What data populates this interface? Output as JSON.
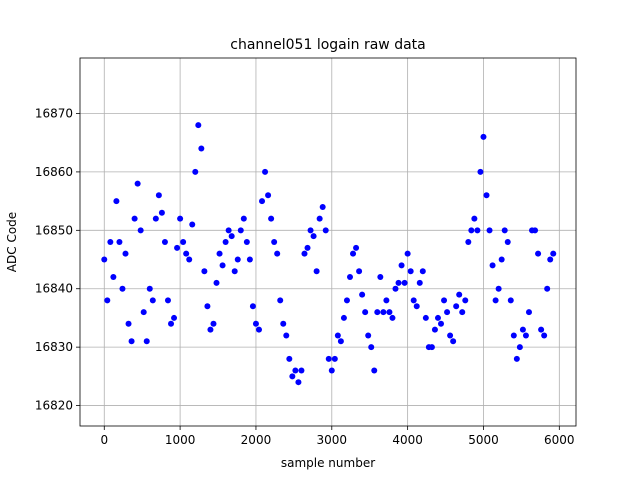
{
  "chart_data": {
    "type": "scatter",
    "title": "channel051 logain raw data",
    "xlabel": "sample number",
    "ylabel": "ADC Code",
    "xlim": [
      -320,
      6220
    ],
    "ylim": [
      16816.5,
      16879.5
    ],
    "xticks": [
      0,
      1000,
      2000,
      3000,
      4000,
      5000,
      6000
    ],
    "yticks": [
      16820,
      16830,
      16840,
      16850,
      16860,
      16870
    ],
    "grid": true,
    "marker_color": "#0000ff",
    "series": [
      {
        "points": [
          [
            0,
            16845
          ],
          [
            40,
            16838
          ],
          [
            80,
            16848
          ],
          [
            120,
            16842
          ],
          [
            160,
            16855
          ],
          [
            200,
            16848
          ],
          [
            240,
            16840
          ],
          [
            280,
            16846
          ],
          [
            320,
            16834
          ],
          [
            360,
            16831
          ],
          [
            400,
            16852
          ],
          [
            440,
            16858
          ],
          [
            480,
            16850
          ],
          [
            520,
            16836
          ],
          [
            560,
            16831
          ],
          [
            600,
            16840
          ],
          [
            640,
            16838
          ],
          [
            680,
            16852
          ],
          [
            720,
            16856
          ],
          [
            760,
            16853
          ],
          [
            800,
            16848
          ],
          [
            840,
            16838
          ],
          [
            880,
            16834
          ],
          [
            920,
            16835
          ],
          [
            960,
            16847
          ],
          [
            1000,
            16852
          ],
          [
            1040,
            16848
          ],
          [
            1080,
            16846
          ],
          [
            1120,
            16845
          ],
          [
            1160,
            16851
          ],
          [
            1200,
            16860
          ],
          [
            1240,
            16868
          ],
          [
            1280,
            16864
          ],
          [
            1320,
            16843
          ],
          [
            1360,
            16837
          ],
          [
            1400,
            16833
          ],
          [
            1440,
            16834
          ],
          [
            1480,
            16841
          ],
          [
            1520,
            16846
          ],
          [
            1560,
            16844
          ],
          [
            1600,
            16848
          ],
          [
            1640,
            16850
          ],
          [
            1680,
            16849
          ],
          [
            1720,
            16843
          ],
          [
            1760,
            16845
          ],
          [
            1800,
            16850
          ],
          [
            1840,
            16852
          ],
          [
            1880,
            16848
          ],
          [
            1920,
            16845
          ],
          [
            1960,
            16837
          ],
          [
            2000,
            16834
          ],
          [
            2040,
            16833
          ],
          [
            2080,
            16855
          ],
          [
            2120,
            16860
          ],
          [
            2160,
            16856
          ],
          [
            2200,
            16852
          ],
          [
            2240,
            16848
          ],
          [
            2280,
            16846
          ],
          [
            2320,
            16838
          ],
          [
            2360,
            16834
          ],
          [
            2400,
            16832
          ],
          [
            2440,
            16828
          ],
          [
            2480,
            16825
          ],
          [
            2520,
            16826
          ],
          [
            2560,
            16824
          ],
          [
            2600,
            16826
          ],
          [
            2640,
            16846
          ],
          [
            2680,
            16847
          ],
          [
            2720,
            16850
          ],
          [
            2760,
            16849
          ],
          [
            2800,
            16843
          ],
          [
            2840,
            16852
          ],
          [
            2880,
            16854
          ],
          [
            2920,
            16850
          ],
          [
            2960,
            16828
          ],
          [
            3000,
            16826
          ],
          [
            3040,
            16828
          ],
          [
            3080,
            16832
          ],
          [
            3120,
            16831
          ],
          [
            3160,
            16835
          ],
          [
            3200,
            16838
          ],
          [
            3240,
            16842
          ],
          [
            3280,
            16846
          ],
          [
            3320,
            16847
          ],
          [
            3360,
            16843
          ],
          [
            3400,
            16839
          ],
          [
            3440,
            16836
          ],
          [
            3480,
            16832
          ],
          [
            3520,
            16830
          ],
          [
            3560,
            16826
          ],
          [
            3600,
            16836
          ],
          [
            3640,
            16842
          ],
          [
            3680,
            16836
          ],
          [
            3720,
            16838
          ],
          [
            3760,
            16836
          ],
          [
            3800,
            16835
          ],
          [
            3840,
            16840
          ],
          [
            3880,
            16841
          ],
          [
            3920,
            16844
          ],
          [
            3960,
            16841
          ],
          [
            4000,
            16846
          ],
          [
            4040,
            16843
          ],
          [
            4080,
            16838
          ],
          [
            4120,
            16837
          ],
          [
            4160,
            16841
          ],
          [
            4200,
            16843
          ],
          [
            4240,
            16835
          ],
          [
            4280,
            16830
          ],
          [
            4320,
            16830
          ],
          [
            4360,
            16833
          ],
          [
            4400,
            16835
          ],
          [
            4440,
            16834
          ],
          [
            4480,
            16838
          ],
          [
            4520,
            16836
          ],
          [
            4560,
            16832
          ],
          [
            4600,
            16831
          ],
          [
            4640,
            16837
          ],
          [
            4680,
            16839
          ],
          [
            4720,
            16836
          ],
          [
            4760,
            16838
          ],
          [
            4800,
            16848
          ],
          [
            4840,
            16850
          ],
          [
            4880,
            16852
          ],
          [
            4920,
            16850
          ],
          [
            4960,
            16860
          ],
          [
            5000,
            16866
          ],
          [
            5040,
            16856
          ],
          [
            5080,
            16850
          ],
          [
            5120,
            16844
          ],
          [
            5160,
            16838
          ],
          [
            5200,
            16840
          ],
          [
            5240,
            16845
          ],
          [
            5280,
            16850
          ],
          [
            5320,
            16848
          ],
          [
            5360,
            16838
          ],
          [
            5400,
            16832
          ],
          [
            5440,
            16828
          ],
          [
            5480,
            16830
          ],
          [
            5520,
            16833
          ],
          [
            5560,
            16832
          ],
          [
            5600,
            16836
          ],
          [
            5640,
            16850
          ],
          [
            5680,
            16850
          ],
          [
            5720,
            16846
          ],
          [
            5760,
            16833
          ],
          [
            5800,
            16832
          ],
          [
            5840,
            16840
          ],
          [
            5880,
            16845
          ],
          [
            5920,
            16846
          ]
        ]
      }
    ]
  }
}
